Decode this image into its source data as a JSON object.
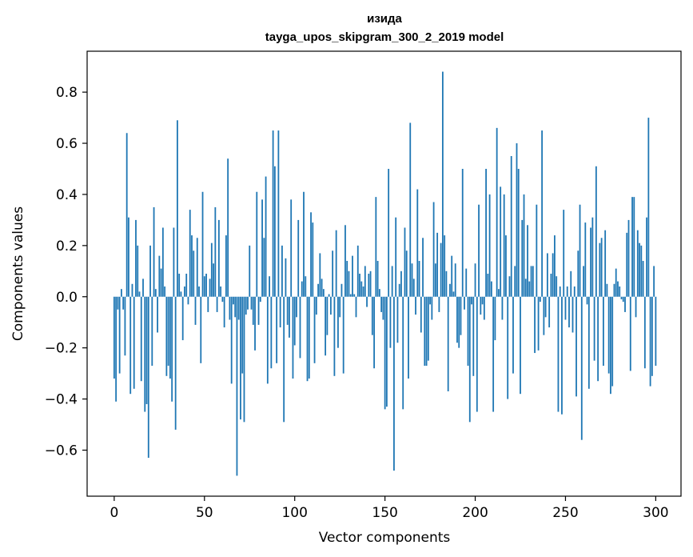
{
  "chart_data": {
    "type": "bar",
    "title": "изида",
    "subtitle": "tayga_upos_skipgram_300_2_2019 model",
    "xlabel": "Vector components",
    "ylabel": "Components values",
    "xlim": [
      -15,
      314
    ],
    "ylim": [
      -0.78,
      0.96
    ],
    "x_ticks": [
      0,
      50,
      100,
      150,
      200,
      250,
      300
    ],
    "x_tick_labels": [
      "0",
      "50",
      "100",
      "150",
      "200",
      "250",
      "300"
    ],
    "y_ticks": [
      -0.6,
      -0.4,
      -0.2,
      0.0,
      0.2,
      0.4,
      0.6,
      0.8
    ],
    "y_tick_labels": [
      "−0.6",
      "−0.4",
      "−0.2",
      "0.0",
      "0.2",
      "0.4",
      "0.6",
      "0.8"
    ],
    "bar_color": "#1f77b4",
    "values": [
      -0.32,
      -0.41,
      -0.05,
      -0.3,
      0.03,
      -0.05,
      -0.23,
      0.64,
      0.31,
      -0.38,
      0.05,
      -0.36,
      0.3,
      0.2,
      0.02,
      -0.33,
      0.07,
      -0.45,
      -0.42,
      -0.63,
      0.2,
      -0.27,
      0.35,
      0.03,
      -0.14,
      0.16,
      0.11,
      0.27,
      0.04,
      -0.31,
      -0.27,
      -0.32,
      -0.41,
      0.27,
      -0.52,
      0.69,
      0.09,
      0.02,
      -0.17,
      0.04,
      0.09,
      -0.03,
      0.34,
      0.24,
      0.18,
      -0.11,
      0.23,
      0.04,
      -0.26,
      0.41,
      0.08,
      0.09,
      -0.06,
      0.07,
      0.21,
      0.13,
      0.35,
      -0.06,
      0.3,
      0.04,
      -0.02,
      -0.12,
      0.24,
      0.54,
      -0.09,
      -0.34,
      -0.03,
      -0.08,
      -0.7,
      -0.09,
      -0.48,
      -0.3,
      -0.49,
      -0.07,
      -0.05,
      0.2,
      -0.05,
      -0.11,
      -0.21,
      0.41,
      -0.11,
      -0.02,
      0.38,
      0.23,
      0.47,
      -0.34,
      0.08,
      -0.28,
      0.65,
      0.51,
      -0.26,
      0.65,
      -0.12,
      0.2,
      -0.49,
      0.15,
      -0.11,
      -0.16,
      0.38,
      -0.32,
      -0.19,
      -0.08,
      0.3,
      -0.24,
      0.06,
      0.41,
      0.08,
      -0.33,
      -0.32,
      0.33,
      0.29,
      -0.26,
      -0.07,
      0.05,
      0.17,
      0.07,
      0.03,
      -0.23,
      -0.15,
      0.01,
      -0.07,
      0.18,
      -0.31,
      0.26,
      -0.2,
      -0.08,
      0.05,
      -0.3,
      0.28,
      0.14,
      0.1,
      0.01,
      0.16,
      0.01,
      -0.08,
      0.2,
      0.09,
      0.06,
      0.04,
      0.12,
      -0.04,
      0.09,
      0.1,
      -0.15,
      -0.28,
      0.39,
      0.14,
      0.03,
      -0.06,
      -0.09,
      -0.44,
      -0.43,
      0.5,
      -0.2,
      0.12,
      -0.68,
      0.31,
      -0.18,
      0.05,
      0.1,
      -0.44,
      0.27,
      0.18,
      -0.32,
      0.68,
      0.13,
      0.07,
      -0.07,
      0.42,
      0.14,
      -0.14,
      0.23,
      -0.27,
      -0.27,
      -0.25,
      -0.03,
      -0.09,
      0.37,
      0.13,
      0.25,
      -0.06,
      0.21,
      0.88,
      0.24,
      0.1,
      -0.37,
      0.05,
      0.16,
      0.02,
      0.13,
      -0.18,
      -0.2,
      -0.15,
      0.5,
      -0.05,
      0.11,
      -0.27,
      -0.49,
      -0.03,
      -0.31,
      0.13,
      -0.45,
      0.36,
      -0.07,
      -0.03,
      -0.09,
      0.5,
      0.09,
      0.4,
      0.06,
      -0.45,
      -0.17,
      0.66,
      0.03,
      0.43,
      -0.09,
      0.4,
      0.24,
      -0.4,
      0.08,
      0.55,
      -0.3,
      0.12,
      0.6,
      0.5,
      -0.38,
      0.3,
      0.4,
      0.07,
      0.28,
      0.06,
      0.12,
      0.12,
      -0.22,
      0.36,
      -0.21,
      -0.02,
      0.65,
      -0.15,
      -0.08,
      0.17,
      -0.12,
      0.09,
      0.17,
      0.24,
      0.08,
      -0.45,
      0.04,
      -0.46,
      0.34,
      -0.09,
      0.04,
      -0.12,
      0.1,
      -0.14,
      0.04,
      -0.39,
      0.18,
      0.36,
      -0.56,
      0.12,
      0.29,
      -0.03,
      -0.36,
      0.27,
      0.31,
      -0.25,
      0.51,
      -0.33,
      0.21,
      0.23,
      -0.27,
      0.26,
      0.05,
      -0.3,
      -0.38,
      -0.35,
      0.05,
      0.11,
      0.06,
      0.04,
      -0.01,
      -0.02,
      -0.06,
      0.25,
      0.3,
      -0.29,
      0.39,
      0.39,
      -0.08,
      0.26,
      0.21,
      0.2,
      0.14,
      -0.28,
      0.31,
      0.7,
      -0.35,
      -0.31,
      0.12,
      -0.27
    ]
  }
}
